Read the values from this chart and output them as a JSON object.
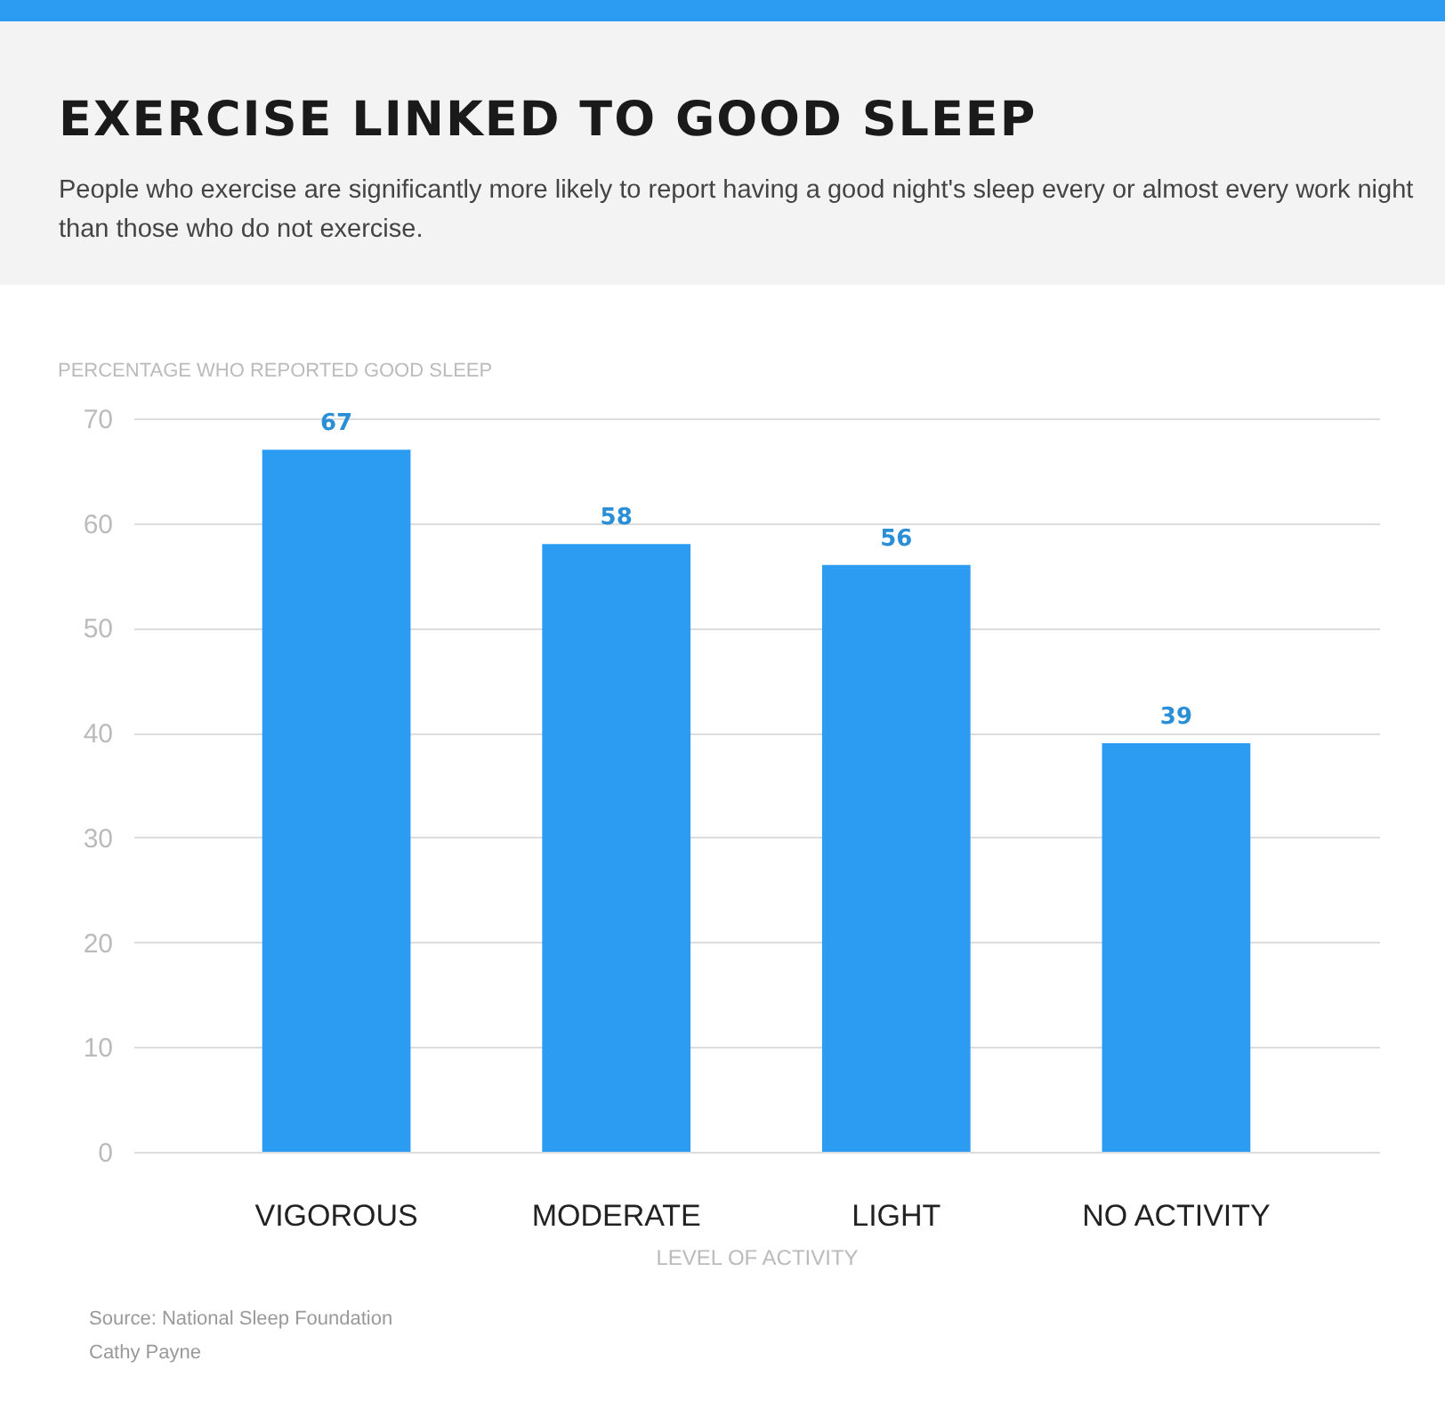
{
  "chart_data": {
    "type": "bar",
    "title": "EXERCISE LINKED TO GOOD SLEEP",
    "subtitle": "People who exercise are significantly more likely to report having a good night's sleep every or almost every work night than those who do not exercise.",
    "ylabel": "PERCENTAGE WHO REPORTED GOOD SLEEP",
    "xlabel": "LEVEL OF ACTIVITY",
    "categories": [
      "VIGOROUS",
      "MODERATE",
      "LIGHT",
      "NO ACTIVITY"
    ],
    "values": [
      67,
      58,
      56,
      39
    ],
    "color": "#2b9cf2",
    "ylim": [
      0,
      70
    ],
    "yticks": [
      0,
      10,
      20,
      30,
      40,
      50,
      60,
      70
    ],
    "grid": "y",
    "data_labels": true,
    "annotations": [
      "Source: National Sleep Foundation",
      "Cathy Payne"
    ]
  }
}
